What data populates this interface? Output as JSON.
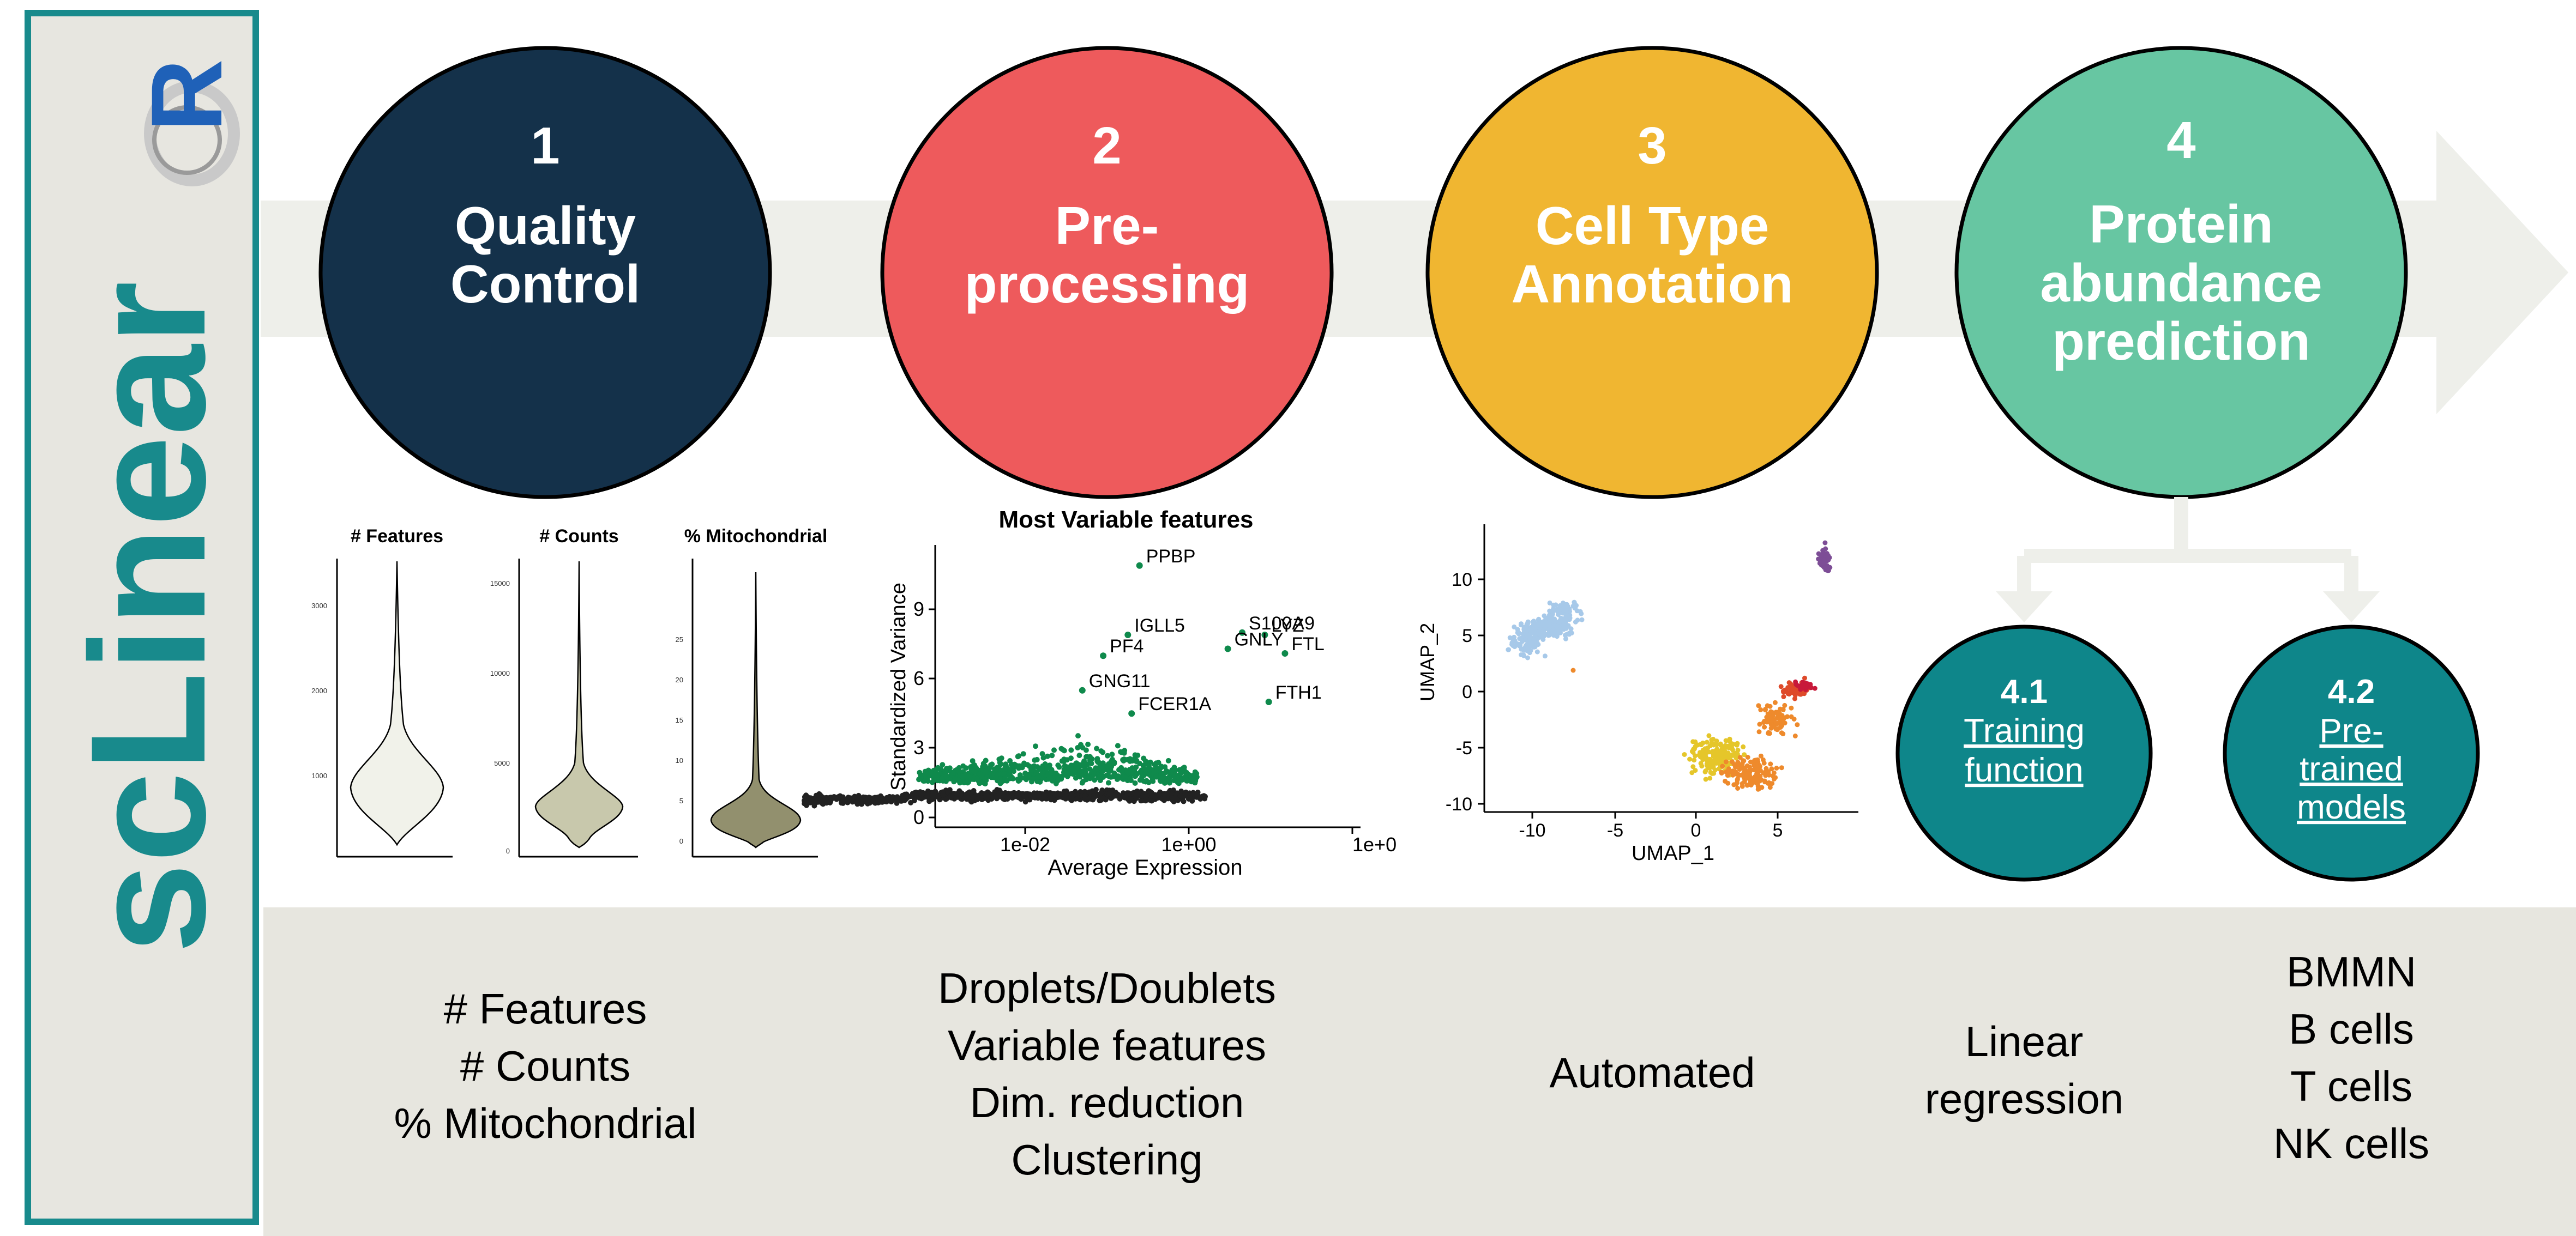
{
  "sidebar": {
    "title": "scLinear",
    "logo_letter": "R",
    "border_color": "#188a8c"
  },
  "colors": {
    "step1": "#14314a",
    "step2": "#ee5a5c",
    "step3": "#f0b631",
    "step4": "#67c6a2",
    "sub_steps": "#0e868a",
    "flow_arrow": "#eeefea",
    "bottom_band": "#e7e6df"
  },
  "steps": [
    {
      "number": "1",
      "title_lines": [
        "Quality",
        "Control"
      ]
    },
    {
      "number": "2",
      "title_lines": [
        "Pre-",
        "processing"
      ]
    },
    {
      "number": "3",
      "title_lines": [
        "Cell Type",
        "Annotation"
      ]
    },
    {
      "number": "4",
      "title_lines": [
        "Protein",
        "abundance",
        "prediction"
      ]
    }
  ],
  "substeps": [
    {
      "number": "4.1",
      "link_lines": [
        "Training",
        "function"
      ]
    },
    {
      "number": "4.2",
      "link_lines": [
        "Pre-",
        "trained",
        "models"
      ]
    }
  ],
  "qc_panel": {
    "panels": [
      {
        "title": "# Features",
        "ticks": [
          "1000",
          "2000",
          "3000"
        ],
        "fill": "#f1f2ea"
      },
      {
        "title": "# Counts",
        "ticks": [
          "0",
          "5000",
          "10000",
          "15000"
        ],
        "fill": "#c8c8ac"
      },
      {
        "title": "% Mitochondrial",
        "ticks": [
          "0",
          "5",
          "10",
          "15",
          "20",
          "25"
        ],
        "fill": "#92906e"
      }
    ]
  },
  "variable_features": {
    "title": "Most Variable features",
    "ylabel": "Standardized Variance",
    "xlabel": "Average Expression",
    "yticks": [
      "0",
      "3",
      "6",
      "9"
    ],
    "xticks": [
      "1e-02",
      "1e+00",
      "1e+0"
    ],
    "highlight_color": "#0f8a4c",
    "base_color": "#222222",
    "genes": [
      {
        "label": "PPBP",
        "x": 0.25,
        "y": 10.9
      },
      {
        "label": "S100A9",
        "x": 4.5,
        "y": 8.0
      },
      {
        "label": "IGLL5",
        "x": 0.18,
        "y": 7.9
      },
      {
        "label": "LYZ",
        "x": 8.5,
        "y": 7.9
      },
      {
        "label": "PF4",
        "x": 0.09,
        "y": 7.0
      },
      {
        "label": "GNLY",
        "x": 3.0,
        "y": 7.3
      },
      {
        "label": "FTL",
        "x": 15.0,
        "y": 7.1
      },
      {
        "label": "GNG11",
        "x": 0.05,
        "y": 5.5
      },
      {
        "label": "FCER1A",
        "x": 0.2,
        "y": 4.5
      },
      {
        "label": "FTH1",
        "x": 9.5,
        "y": 5.0
      }
    ]
  },
  "umap": {
    "xlabel": "UMAP_1",
    "ylabel": "UMAP_2",
    "xticks": [
      "-10",
      "-5",
      "0",
      "5"
    ],
    "yticks": [
      "10",
      "5",
      "0",
      "-5",
      "-10"
    ]
  },
  "bottom": {
    "col1": [
      "# Features",
      "# Counts",
      "% Mitochondrial"
    ],
    "col2": [
      "Droplets/Doublets",
      "Variable features",
      "Dim. reduction",
      "Clustering"
    ],
    "col3": [
      "Automated"
    ],
    "col4": [
      "Linear",
      "regression"
    ],
    "col5": [
      "BMMN",
      "B cells",
      "T cells",
      "NK cells"
    ]
  }
}
